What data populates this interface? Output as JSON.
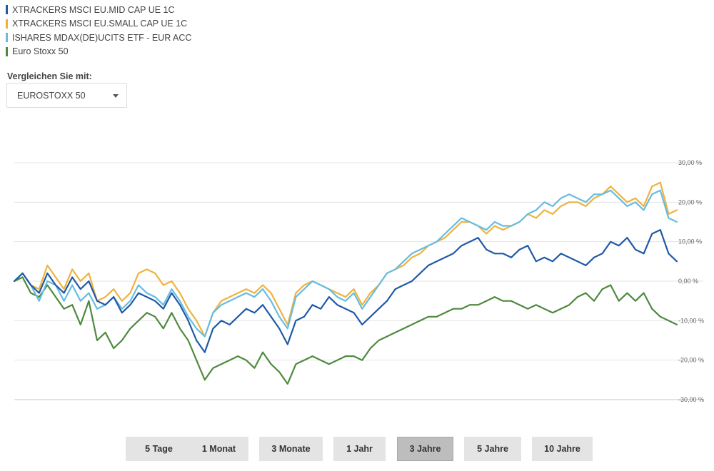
{
  "legend": [
    {
      "label": "XTRACKERS MSCI EU.MID CAP UE 1C",
      "color": "#1f5aa6"
    },
    {
      "label": "XTRACKERS MSCI EU.SMALL CAP UE 1C",
      "color": "#f0b23e"
    },
    {
      "label": "ISHARES MDAX(DE)UCITS ETF - EUR ACC",
      "color": "#66bde0"
    },
    {
      "label": "Euro Stoxx 50",
      "color": "#4e8a3e"
    }
  ],
  "compare": {
    "label": "Vergleichen Sie mit:",
    "value": "EUROSTOXX 50",
    "icon": "chevron-down-icon"
  },
  "range_buttons": [
    {
      "label": "5 Tage",
      "active": false
    },
    {
      "label": "1 Monat",
      "active": false
    },
    {
      "label": "3 Monate",
      "active": false
    },
    {
      "label": "1 Jahr",
      "active": false
    },
    {
      "label": "3 Jahre",
      "active": true
    },
    {
      "label": "5 Jahre",
      "active": false
    },
    {
      "label": "10 Jahre",
      "active": false
    }
  ],
  "chart_data": {
    "type": "line",
    "title": "",
    "xlabel": "",
    "ylabel": "",
    "ylim": [
      -30,
      30
    ],
    "y_ticks": [
      30,
      20,
      10,
      0,
      -10,
      -20,
      -30
    ],
    "y_tick_labels": [
      "30,00 %",
      "20,00 %",
      "10,00 %",
      "0,00 %",
      "-10,00 %",
      "-20,00 %",
      "-30,00 %"
    ],
    "grid": true,
    "legend_position": "top-left",
    "x_points": 81,
    "series": [
      {
        "name": "XTRACKERS MSCI EU.MID CAP UE 1C",
        "color": "#1f5aa6",
        "values": [
          0,
          2,
          -1,
          -3,
          2,
          -1,
          -3,
          1,
          -2,
          0,
          -5,
          -6,
          -4,
          -8,
          -6,
          -3,
          -4,
          -5,
          -7,
          -3,
          -6,
          -10,
          -15,
          -18,
          -12,
          -10,
          -11,
          -9,
          -7,
          -8,
          -6,
          -9,
          -12,
          -16,
          -10,
          -9,
          -6,
          -7,
          -4,
          -6,
          -7,
          -8,
          -11,
          -9,
          -7,
          -5,
          -2,
          -1,
          0,
          2,
          4,
          5,
          6,
          7,
          9,
          10,
          11,
          8,
          7,
          7,
          6,
          8,
          9,
          5,
          6,
          5,
          7,
          6,
          5,
          4,
          6,
          7,
          10,
          9,
          11,
          8,
          7,
          12,
          13,
          7,
          5
        ]
      },
      {
        "name": "XTRACKERS MSCI EU.SMALL CAP UE 1C",
        "color": "#f0b23e",
        "values": [
          0,
          2,
          -1,
          -2,
          4,
          1,
          -2,
          3,
          0,
          2,
          -5,
          -4,
          -2,
          -5,
          -3,
          2,
          3,
          2,
          -1,
          0,
          -3,
          -7,
          -10,
          -14,
          -8,
          -5,
          -4,
          -3,
          -2,
          -3,
          -1,
          -3,
          -7,
          -11,
          -3,
          -1,
          0,
          -1,
          -2,
          -3,
          -4,
          -2,
          -6,
          -3,
          -1,
          2,
          3,
          4,
          6,
          7,
          9,
          10,
          11,
          13,
          15,
          15,
          14,
          12,
          14,
          13,
          14,
          15,
          17,
          16,
          18,
          17,
          19,
          20,
          20,
          19,
          21,
          22,
          24,
          22,
          20,
          21,
          19,
          24,
          25,
          17,
          18
        ]
      },
      {
        "name": "ISHARES MDAX(DE)UCITS ETF - EUR ACC",
        "color": "#66bde0",
        "values": [
          0,
          2,
          -1,
          -5,
          0,
          -1,
          -5,
          -1,
          -5,
          -3,
          -7,
          -6,
          -4,
          -7,
          -5,
          -1,
          -3,
          -4,
          -6,
          -2,
          -5,
          -9,
          -12,
          -14,
          -8,
          -6,
          -5,
          -4,
          -3,
          -4,
          -2,
          -5,
          -9,
          -12,
          -4,
          -2,
          0,
          -1,
          -2,
          -4,
          -5,
          -3,
          -7,
          -4,
          -1,
          2,
          3,
          5,
          7,
          8,
          9,
          10,
          12,
          14,
          16,
          15,
          14,
          13,
          15,
          14,
          14,
          15,
          17,
          18,
          20,
          19,
          21,
          22,
          21,
          20,
          22,
          22,
          23,
          21,
          19,
          20,
          18,
          22,
          23,
          16,
          15
        ]
      },
      {
        "name": "Euro Stoxx 50",
        "color": "#4e8a3e",
        "values": [
          0,
          1,
          -3,
          -4,
          -1,
          -4,
          -7,
          -6,
          -11,
          -5,
          -15,
          -13,
          -17,
          -15,
          -12,
          -10,
          -8,
          -9,
          -12,
          -8,
          -12,
          -15,
          -20,
          -25,
          -22,
          -21,
          -20,
          -19,
          -20,
          -22,
          -18,
          -21,
          -23,
          -26,
          -21,
          -20,
          -19,
          -20,
          -21,
          -20,
          -19,
          -19,
          -20,
          -17,
          -15,
          -14,
          -13,
          -12,
          -11,
          -10,
          -9,
          -9,
          -8,
          -7,
          -7,
          -6,
          -6,
          -5,
          -4,
          -5,
          -5,
          -6,
          -7,
          -6,
          -7,
          -8,
          -7,
          -6,
          -4,
          -3,
          -5,
          -2,
          -1,
          -5,
          -3,
          -5,
          -3,
          -7,
          -9,
          -10,
          -11
        ]
      }
    ]
  }
}
